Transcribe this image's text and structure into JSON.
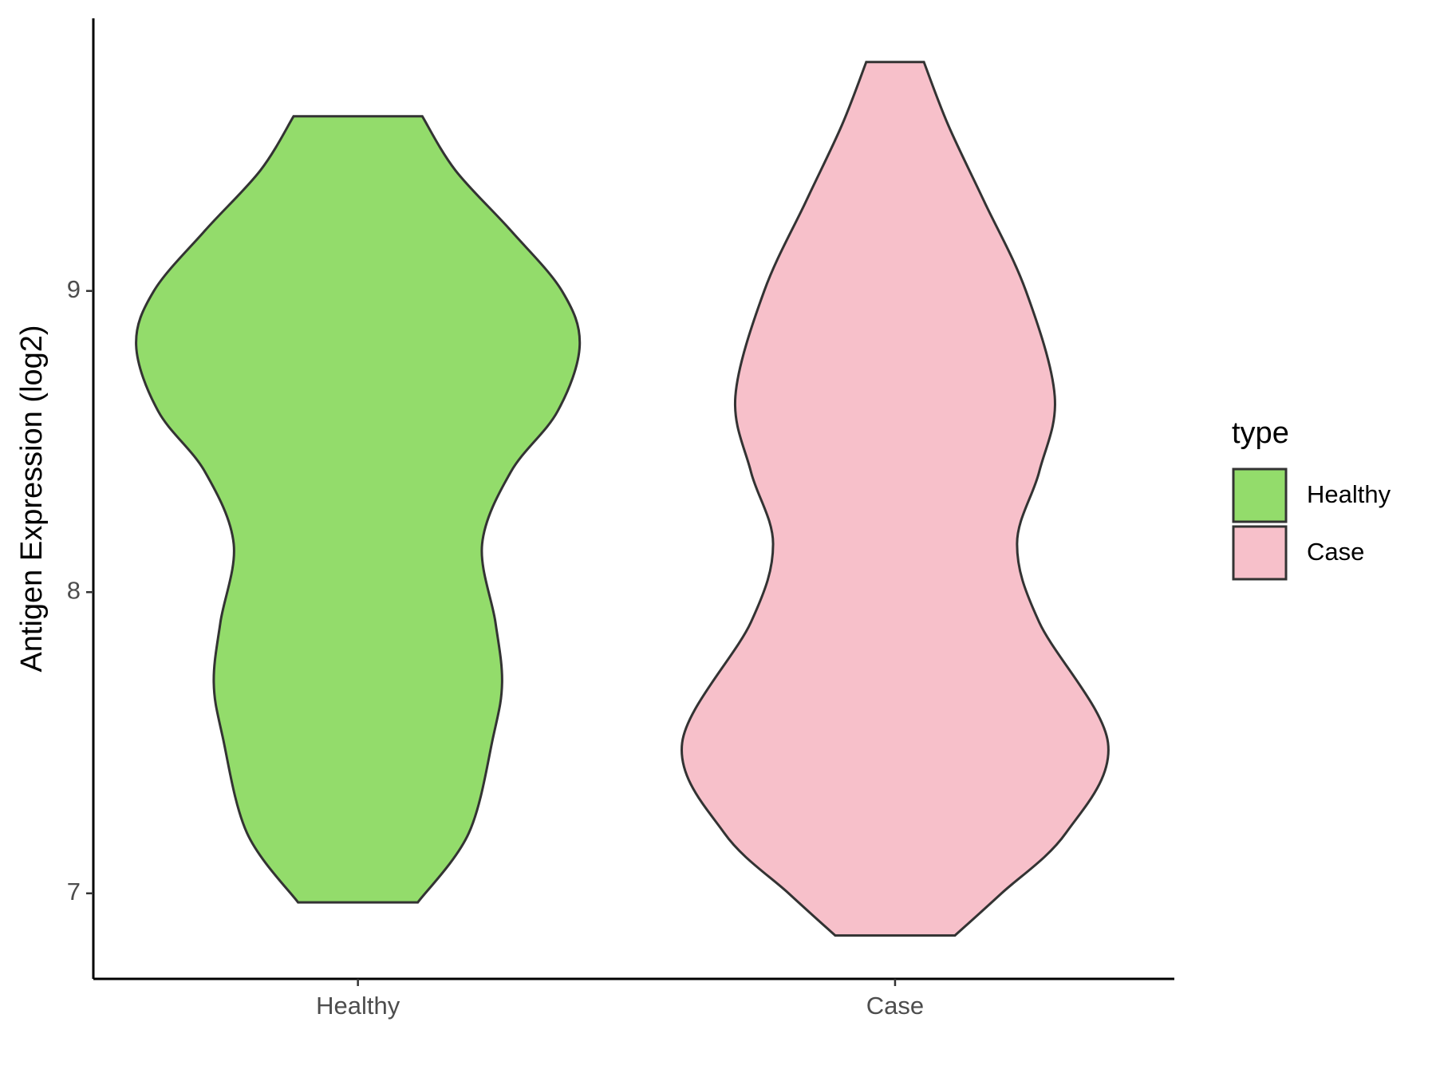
{
  "chart_data": {
    "type": "violin",
    "ylabel": "Antigen Expression (log2)",
    "categories": [
      "Healthy",
      "Case"
    ],
    "ylim": [
      6.716,
      9.905
    ],
    "yticks": [
      7,
      8,
      9
    ],
    "legend_title": "type",
    "legend": "right",
    "series": [
      {
        "name": "Healthy",
        "color": "#93dc6b",
        "y": [
          6.97,
          7.2,
          7.52,
          7.7,
          7.9,
          8.16,
          8.4,
          8.6,
          8.82,
          9.0,
          9.2,
          9.4,
          9.58
        ],
        "widths": [
          0.27,
          0.5,
          0.61,
          0.65,
          0.62,
          0.56,
          0.69,
          0.9,
          1.0,
          0.92,
          0.69,
          0.44,
          0.29
        ]
      },
      {
        "name": "Case",
        "color": "#f7c0ca",
        "y": [
          6.86,
          7.0,
          7.2,
          7.5,
          7.9,
          8.16,
          8.4,
          8.65,
          9.0,
          9.3,
          9.55,
          9.76
        ],
        "widths": [
          0.27,
          0.48,
          0.77,
          0.96,
          0.65,
          0.55,
          0.65,
          0.72,
          0.59,
          0.4,
          0.24,
          0.13
        ]
      }
    ]
  }
}
